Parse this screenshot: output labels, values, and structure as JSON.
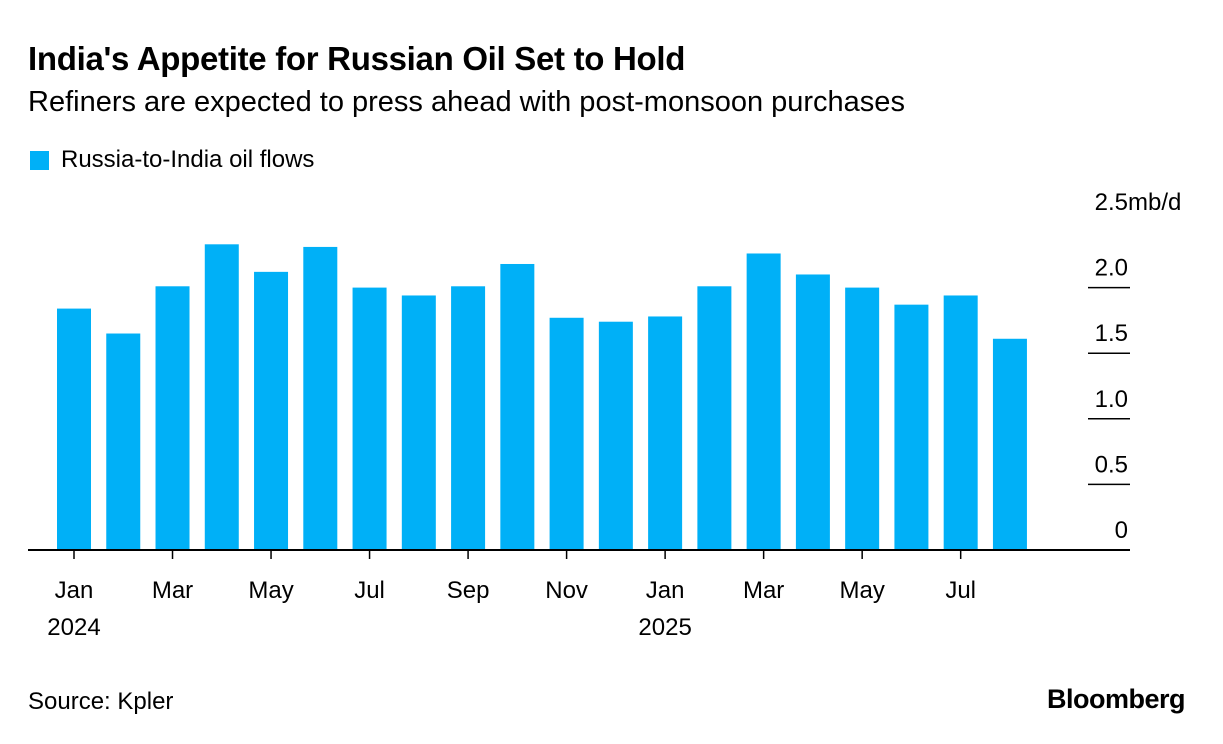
{
  "chart_data": {
    "type": "bar",
    "title": "India's Appetite for Russian Oil Set to Hold",
    "subtitle": "Refiners are expected to press ahead with post-monsoon purchases",
    "legend": [
      {
        "label": "Russia-to-India oil flows",
        "color": "#00b0f7"
      }
    ],
    "categories": [
      "Jan 2024",
      "Feb 2024",
      "Mar 2024",
      "Apr 2024",
      "May 2024",
      "Jun 2024",
      "Jul 2024",
      "Aug 2024",
      "Sep 2024",
      "Oct 2024",
      "Nov 2024",
      "Dec 2024",
      "Jan 2025",
      "Feb 2025",
      "Mar 2025",
      "Apr 2025",
      "May 2025",
      "Jun 2025",
      "Jul 2025",
      "Aug 2025"
    ],
    "values": [
      1.84,
      1.65,
      2.01,
      2.33,
      2.12,
      2.31,
      2.0,
      1.94,
      2.01,
      2.18,
      1.77,
      1.74,
      1.78,
      2.01,
      2.26,
      2.1,
      2.0,
      1.87,
      1.94,
      1.61
    ],
    "x_ticks": [
      {
        "index": 0,
        "label": "Jan",
        "year": "2024"
      },
      {
        "index": 2,
        "label": "Mar"
      },
      {
        "index": 4,
        "label": "May"
      },
      {
        "index": 6,
        "label": "Jul"
      },
      {
        "index": 8,
        "label": "Sep"
      },
      {
        "index": 10,
        "label": "Nov"
      },
      {
        "index": 12,
        "label": "Jan",
        "year": "2025"
      },
      {
        "index": 14,
        "label": "Mar"
      },
      {
        "index": 16,
        "label": "May"
      },
      {
        "index": 18,
        "label": "Jul"
      }
    ],
    "y_ticks": [
      {
        "value": 0,
        "label": "0"
      },
      {
        "value": 0.5,
        "label": "0.5"
      },
      {
        "value": 1.0,
        "label": "1.0"
      },
      {
        "value": 1.5,
        "label": "1.5"
      },
      {
        "value": 2.0,
        "label": "2.0"
      },
      {
        "value": 2.5,
        "label": "2.5"
      }
    ],
    "yunit": "mb/d",
    "ylim": [
      0,
      2.5
    ],
    "xlabel": "",
    "ylabel": "",
    "grid": false,
    "legend_position": "top-left",
    "y_axis_position": "right"
  },
  "footer": {
    "source": "Source: Kpler",
    "brand": "Bloomberg"
  }
}
